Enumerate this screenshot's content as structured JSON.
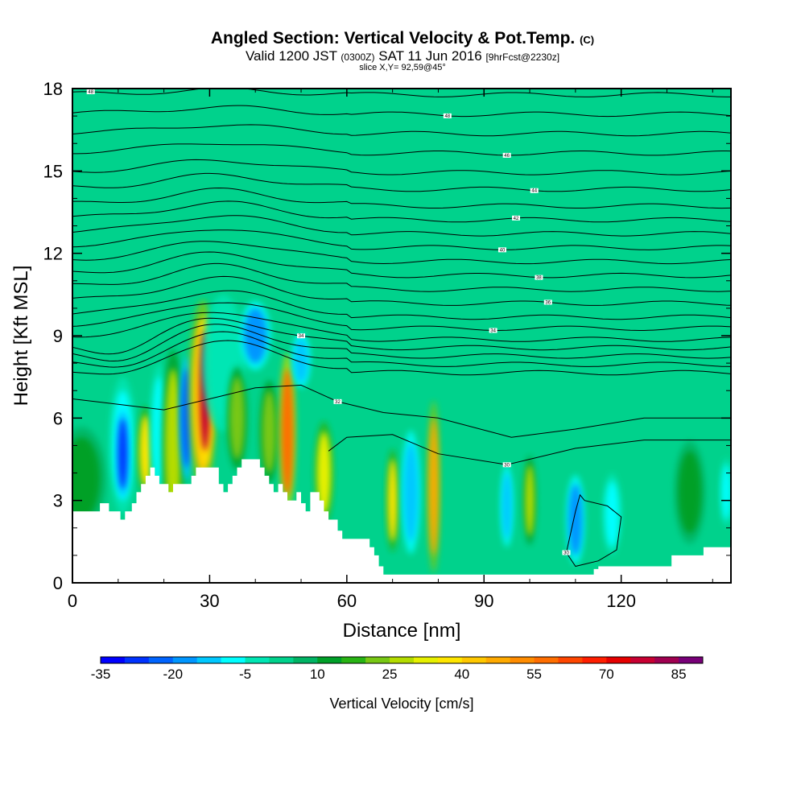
{
  "header": {
    "title": "Angled Section: Vertical Velocity & Pot.Temp.",
    "title_suffix": "(C)",
    "valid_prefix": "Valid 1200 JST",
    "valid_zulu": "(0300Z)",
    "valid_date": "SAT 11 Jun 2016",
    "valid_fcst": "[9hrFcst@2230z]",
    "slice": "slice X,Y= 92,59@45°"
  },
  "chart_data": {
    "type": "heatmap",
    "xlabel": "Distance [nm]",
    "ylabel": "Height [Kft MSL]",
    "xlim": [
      0,
      144
    ],
    "ylim": [
      0,
      18
    ],
    "xticks": [
      0,
      30,
      60,
      90,
      120
    ],
    "yticks": [
      0,
      3,
      6,
      9,
      12,
      15,
      18
    ],
    "colors": {
      "background_field": "#00d28c",
      "terrain": "#ffffff",
      "contour": "#000000"
    },
    "colorbar": {
      "title": "Vertical Velocity [cm/s]",
      "levels": [
        -35,
        -30,
        -25,
        -20,
        -15,
        -10,
        -5,
        0,
        5,
        10,
        15,
        20,
        25,
        30,
        35,
        40,
        45,
        50,
        55,
        60,
        65,
        70,
        75,
        80,
        85,
        90
      ],
      "labels": [
        -35,
        -20,
        -5,
        10,
        25,
        40,
        55,
        70,
        85
      ],
      "colors": [
        "#0000ff",
        "#0032ff",
        "#0064ff",
        "#0096ff",
        "#00c8ff",
        "#00ffff",
        "#00e6b4",
        "#00d28c",
        "#00b464",
        "#00a028",
        "#28b414",
        "#78c814",
        "#b4dc00",
        "#e6f000",
        "#ffe600",
        "#ffc800",
        "#ffaa00",
        "#ff8c00",
        "#ff6e00",
        "#ff4600",
        "#ff1e00",
        "#e60000",
        "#c80032",
        "#a00050",
        "#780078"
      ]
    },
    "terrain_profile": {
      "x": [
        0,
        3,
        6,
        8,
        10,
        10.5,
        11.5,
        12.5,
        13,
        14,
        15,
        16,
        17,
        18,
        19,
        20,
        21,
        22,
        23,
        24,
        25,
        26,
        27,
        28,
        29,
        30,
        31,
        32,
        33,
        34,
        35,
        36,
        37,
        38,
        39,
        40,
        41,
        42,
        43,
        44,
        45,
        46,
        47,
        48,
        49,
        50,
        51,
        52,
        53,
        54,
        55,
        56,
        57,
        58,
        59,
        60,
        62,
        63,
        64,
        65,
        66,
        67,
        68,
        69,
        70,
        72,
        74,
        76,
        78,
        80,
        82,
        84,
        86,
        88,
        90,
        95,
        100,
        105,
        110,
        113,
        114,
        115,
        120,
        125,
        128,
        131,
        133,
        137,
        138,
        144
      ],
      "y": [
        2.6,
        2.6,
        2.9,
        2.6,
        2.6,
        2.3,
        2.6,
        2.6,
        2.9,
        3.3,
        3.6,
        3.9,
        4.2,
        3.9,
        3.6,
        3.6,
        3.3,
        3.6,
        3.6,
        3.6,
        3.6,
        3.9,
        4.2,
        4.2,
        4.2,
        4.2,
        4.2,
        3.6,
        3.3,
        3.6,
        3.9,
        4.2,
        4.5,
        4.5,
        4.5,
        4.5,
        4.2,
        3.9,
        3.6,
        3.3,
        3.6,
        3.3,
        3.0,
        3.0,
        3.3,
        2.9,
        2.6,
        3.3,
        3.3,
        3.0,
        2.6,
        2.3,
        2.3,
        1.9,
        1.6,
        1.6,
        1.6,
        1.6,
        1.6,
        1.3,
        1.0,
        0.6,
        0.3,
        0.3,
        0.3,
        0.3,
        0.3,
        0.3,
        0.3,
        0.3,
        0.3,
        0.3,
        0.3,
        0.3,
        0.3,
        0.3,
        0.3,
        0.3,
        0.3,
        0.3,
        0.5,
        0.6,
        0.6,
        0.6,
        0.6,
        1.0,
        1.0,
        1.0,
        1.3,
        1.3
      ]
    },
    "cells": [
      {
        "x": 2,
        "y": 3.8,
        "rx": 4,
        "ry": 1.5,
        "v": 10
      },
      {
        "x": 11,
        "y": 5.0,
        "rx": 2.2,
        "ry": 2.0,
        "v": -10
      },
      {
        "x": 11,
        "y": 4.7,
        "rx": 1.0,
        "ry": 1.3,
        "v": -30
      },
      {
        "x": 16,
        "y": 4.8,
        "rx": 1.3,
        "ry": 1.3,
        "v": 35
      },
      {
        "x": 19,
        "y": 5.5,
        "rx": 1.5,
        "ry": 2.0,
        "v": -10
      },
      {
        "x": 22,
        "y": 5.0,
        "rx": 1.8,
        "ry": 2.8,
        "v": 25
      },
      {
        "x": 25,
        "y": 6.0,
        "rx": 1.2,
        "ry": 1.8,
        "v": -25
      },
      {
        "x": 28.5,
        "y": 6.8,
        "rx": 2.3,
        "ry": 2.8,
        "v": 40
      },
      {
        "x": 29,
        "y": 7.0,
        "rx": 1.2,
        "ry": 2.2,
        "v": 75
      },
      {
        "x": 33,
        "y": 8.0,
        "rx": 3.5,
        "ry": 2.0,
        "v": -5
      },
      {
        "x": 36,
        "y": 6.0,
        "rx": 1.6,
        "ry": 1.5,
        "v": 20
      },
      {
        "x": 40,
        "y": 9.0,
        "rx": 2.5,
        "ry": 1.0,
        "v": -20
      },
      {
        "x": 43,
        "y": 5.5,
        "rx": 1.5,
        "ry": 1.5,
        "v": 20
      },
      {
        "x": 47,
        "y": 5.5,
        "rx": 1.3,
        "ry": 2.3,
        "v": 55
      },
      {
        "x": 50,
        "y": 8.1,
        "rx": 1.5,
        "ry": 0.8,
        "v": -15
      },
      {
        "x": 55,
        "y": 4.0,
        "rx": 1.5,
        "ry": 1.5,
        "v": 30
      },
      {
        "x": 70,
        "y": 3.0,
        "rx": 1.0,
        "ry": 1.5,
        "v": 35
      },
      {
        "x": 74,
        "y": 3.3,
        "rx": 1.5,
        "ry": 1.8,
        "v": -15
      },
      {
        "x": 79,
        "y": 3.5,
        "rx": 1.0,
        "ry": 2.5,
        "v": 45
      },
      {
        "x": 95,
        "y": 2.8,
        "rx": 1.0,
        "ry": 1.2,
        "v": -15
      },
      {
        "x": 100,
        "y": 3.0,
        "rx": 1.0,
        "ry": 1.3,
        "v": 25
      },
      {
        "x": 110,
        "y": 2.3,
        "rx": 1.5,
        "ry": 1.3,
        "v": -20
      },
      {
        "x": 118,
        "y": 2.5,
        "rx": 1.5,
        "ry": 1.2,
        "v": -10
      },
      {
        "x": 135,
        "y": 3.3,
        "rx": 2.5,
        "ry": 1.5,
        "v": 10
      },
      {
        "x": 143,
        "y": 3.3,
        "rx": 1.0,
        "ry": 1.0,
        "v": -10
      }
    ],
    "isentropes": [
      {
        "base": 7.8,
        "label": "",
        "lx": 0
      },
      {
        "base": 8.1,
        "label": "",
        "lx": 0
      },
      {
        "base": 8.4,
        "label": "",
        "lx": 0
      },
      {
        "base": 8.7,
        "label": "34",
        "lx": 50
      },
      {
        "base": 9.0,
        "label": "",
        "lx": 0
      },
      {
        "base": 9.4,
        "label": "34",
        "lx": 92
      },
      {
        "base": 9.8,
        "label": "",
        "lx": 0
      },
      {
        "base": 10.3,
        "label": "36",
        "lx": 104
      },
      {
        "base": 10.8,
        "label": "",
        "lx": 0
      },
      {
        "base": 11.3,
        "label": "38",
        "lx": 102
      },
      {
        "base": 11.8,
        "label": "",
        "lx": 0
      },
      {
        "base": 12.3,
        "label": "40",
        "lx": 94
      },
      {
        "base": 12.8,
        "label": "",
        "lx": 0
      },
      {
        "base": 13.3,
        "label": "42",
        "lx": 97
      },
      {
        "base": 13.8,
        "label": "",
        "lx": 0
      },
      {
        "base": 14.4,
        "label": "44",
        "lx": 101
      },
      {
        "base": 15.0,
        "label": "",
        "lx": 0
      },
      {
        "base": 15.7,
        "label": "46",
        "lx": 95
      },
      {
        "base": 16.4,
        "label": "",
        "lx": 0
      },
      {
        "base": 17.1,
        "label": "48",
        "lx": 82
      },
      {
        "base": 17.8,
        "label": "48",
        "lx": 4
      }
    ],
    "lower_contours": [
      {
        "label": "32",
        "pts": [
          [
            0,
            6.7
          ],
          [
            10,
            6.5
          ],
          [
            20,
            6.3
          ],
          [
            30,
            6.7
          ],
          [
            40,
            7.1
          ],
          [
            50,
            7.2
          ],
          [
            58,
            6.6
          ],
          [
            68,
            6.2
          ],
          [
            80,
            6.0
          ],
          [
            96,
            5.3
          ],
          [
            110,
            5.6
          ],
          [
            125,
            6.0
          ],
          [
            144,
            6.0
          ]
        ],
        "lx": 57
      },
      {
        "label": "30",
        "pts": [
          [
            56,
            4.8
          ],
          [
            60,
            5.3
          ],
          [
            70,
            5.4
          ],
          [
            80,
            4.7
          ],
          [
            95,
            4.3
          ],
          [
            110,
            4.9
          ],
          [
            125,
            5.2
          ],
          [
            144,
            5.2
          ]
        ],
        "lx": 99
      },
      {
        "label": "30",
        "pts": [
          [
            108,
            1.1
          ],
          [
            110,
            2.6
          ],
          [
            111,
            3.2
          ],
          [
            112,
            3.0
          ],
          [
            117,
            2.8
          ],
          [
            120,
            2.4
          ],
          [
            119,
            1.2
          ],
          [
            115,
            0.8
          ],
          [
            110,
            0.6
          ],
          [
            108,
            1.1
          ]
        ],
        "lx": 109
      }
    ]
  }
}
